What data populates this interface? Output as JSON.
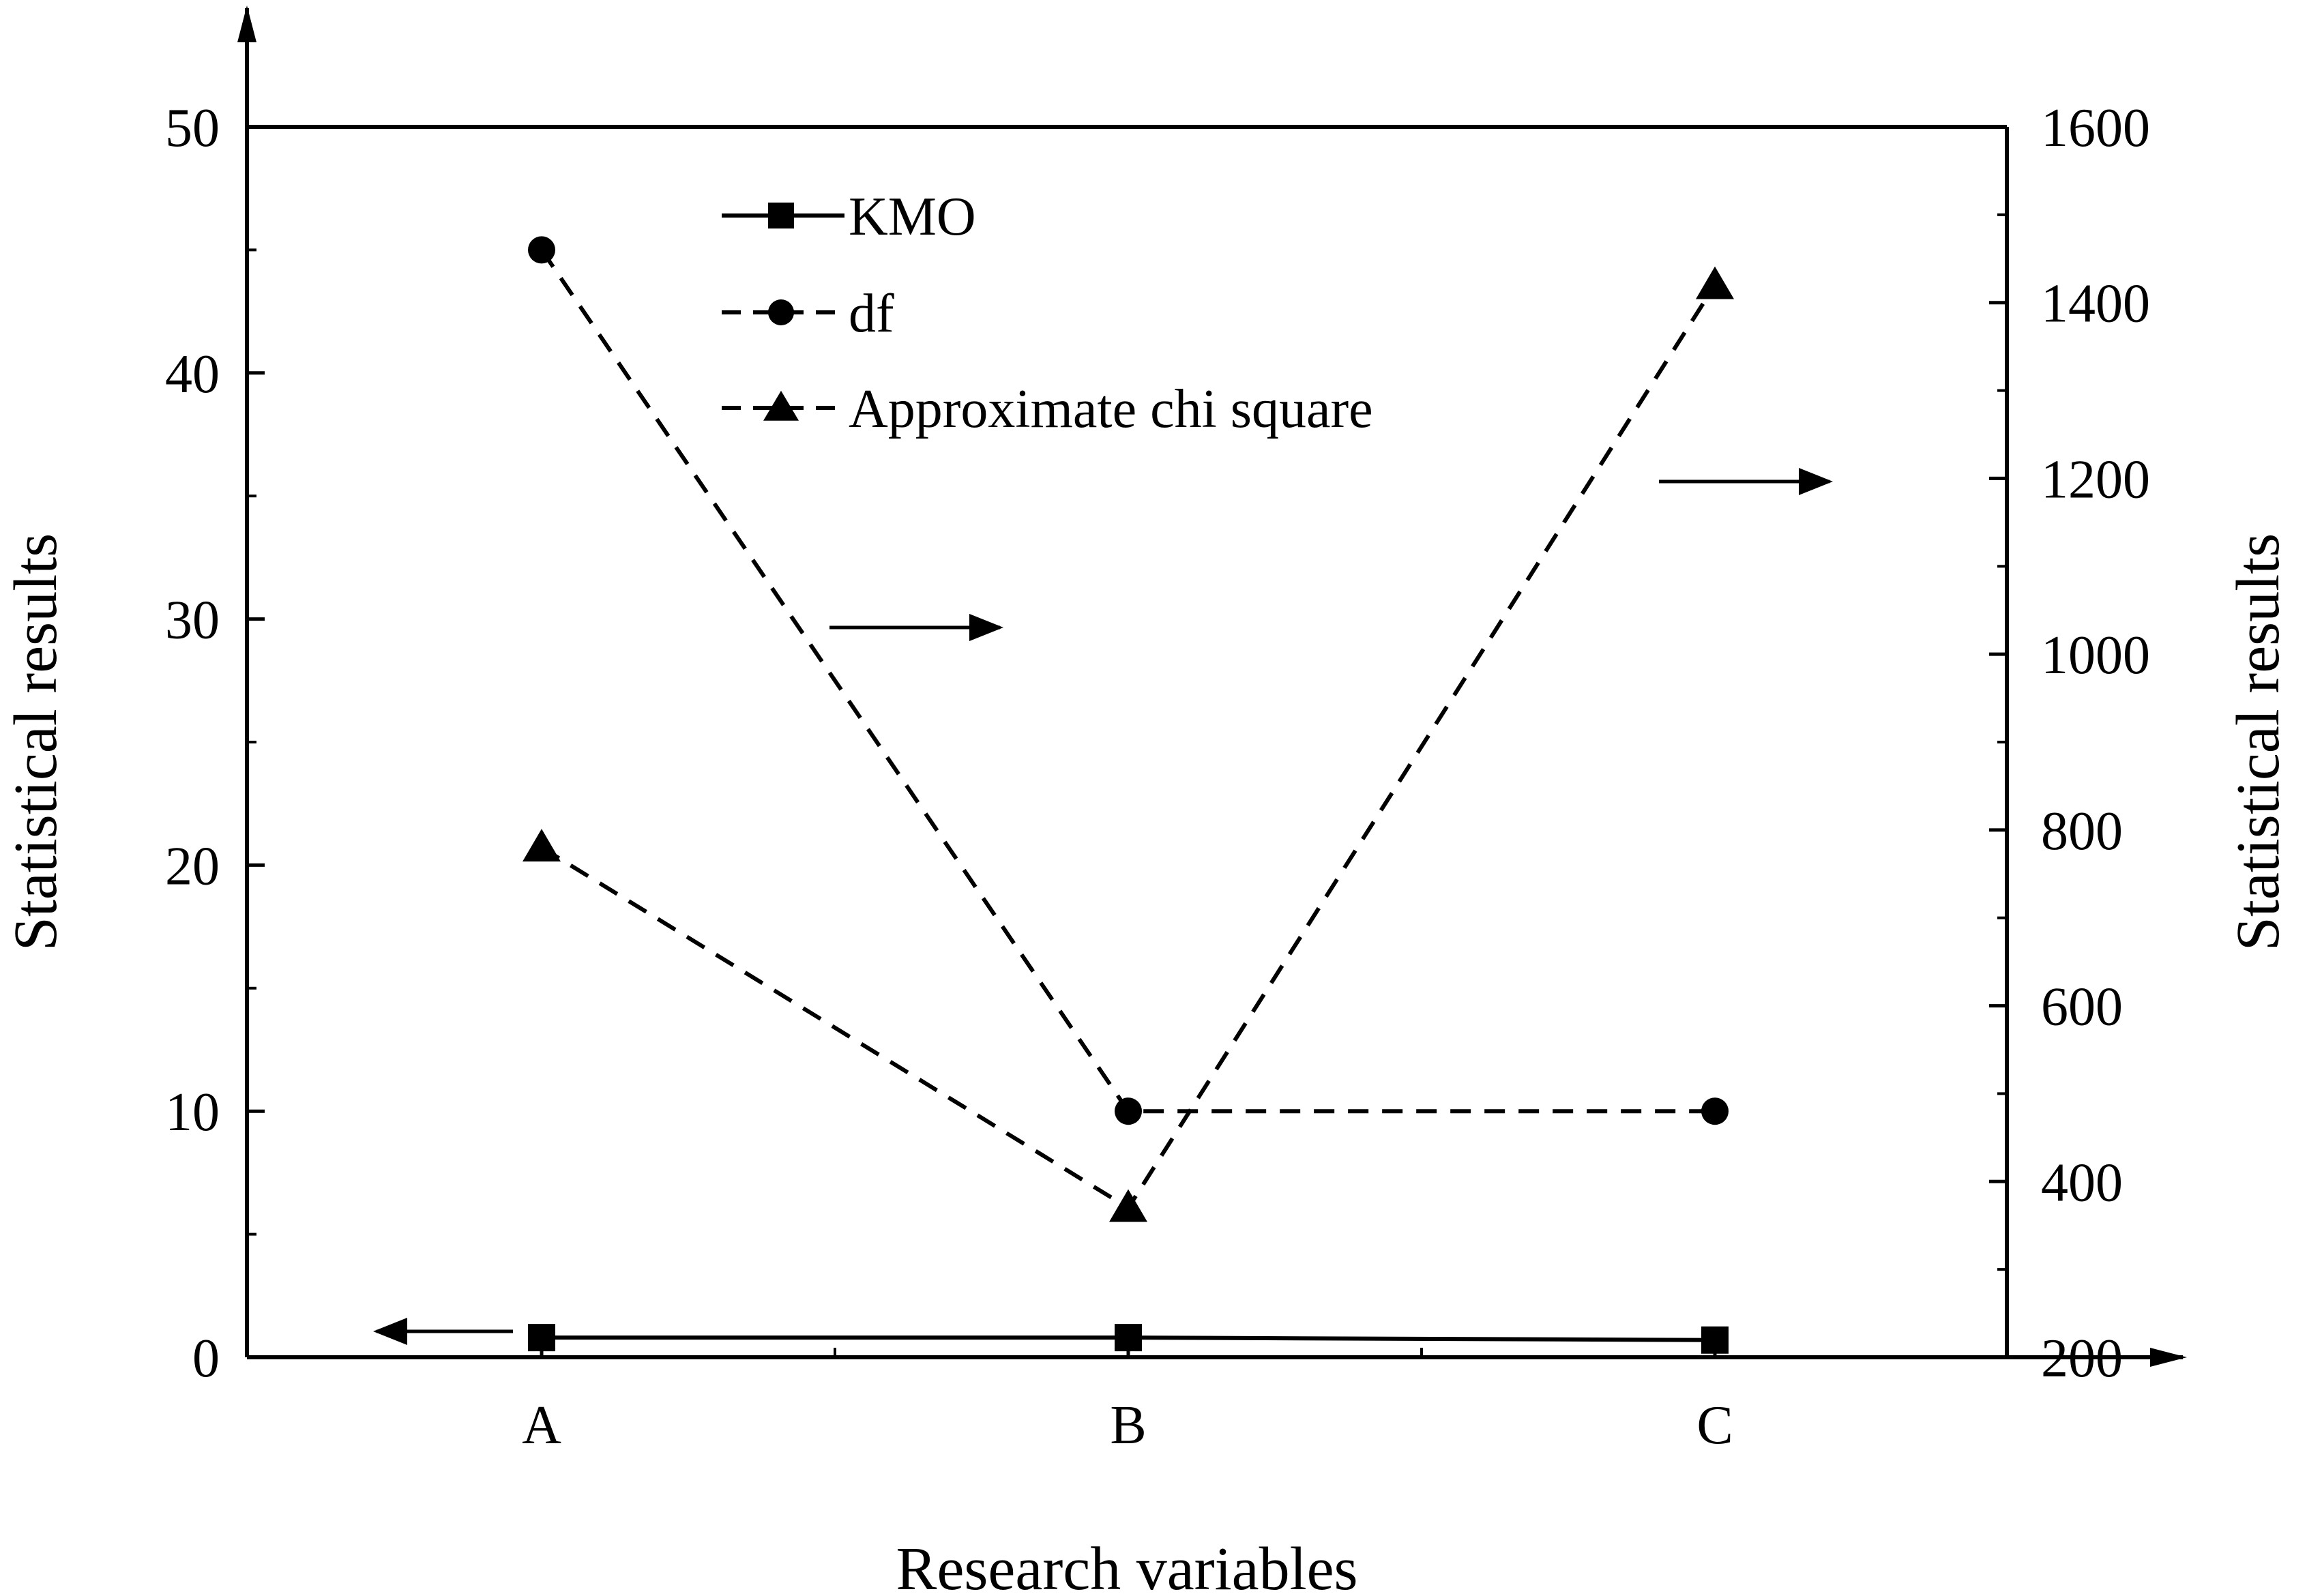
{
  "chart_data": {
    "type": "line",
    "categories": [
      "A",
      "B",
      "C"
    ],
    "xlabel": "Research variables",
    "ylabel_left": "Statistical results",
    "ylabel_right": "Statistical results",
    "ylim_left": [
      0,
      50
    ],
    "ylim_right": [
      200,
      1600
    ],
    "yticks_left": [
      "0",
      "10",
      "20",
      "30",
      "40",
      "50"
    ],
    "yticks_right": [
      "200",
      "400",
      "600",
      "800",
      "1000",
      "1200",
      "1400",
      "1600"
    ],
    "grid": false,
    "legend_position": "top-center",
    "series": [
      {
        "name": "KMO",
        "axis": "left",
        "marker": "square",
        "dash": "solid",
        "values": [
          0.8,
          0.8,
          0.7
        ]
      },
      {
        "name": "df",
        "axis": "left",
        "marker": "circle",
        "dash": "dashed",
        "values": [
          45,
          10,
          10
        ]
      },
      {
        "name": "Approximate chi square",
        "axis": "right",
        "marker": "triangle",
        "dash": "dashed",
        "values": [
          780,
          370,
          1420
        ]
      }
    ]
  }
}
